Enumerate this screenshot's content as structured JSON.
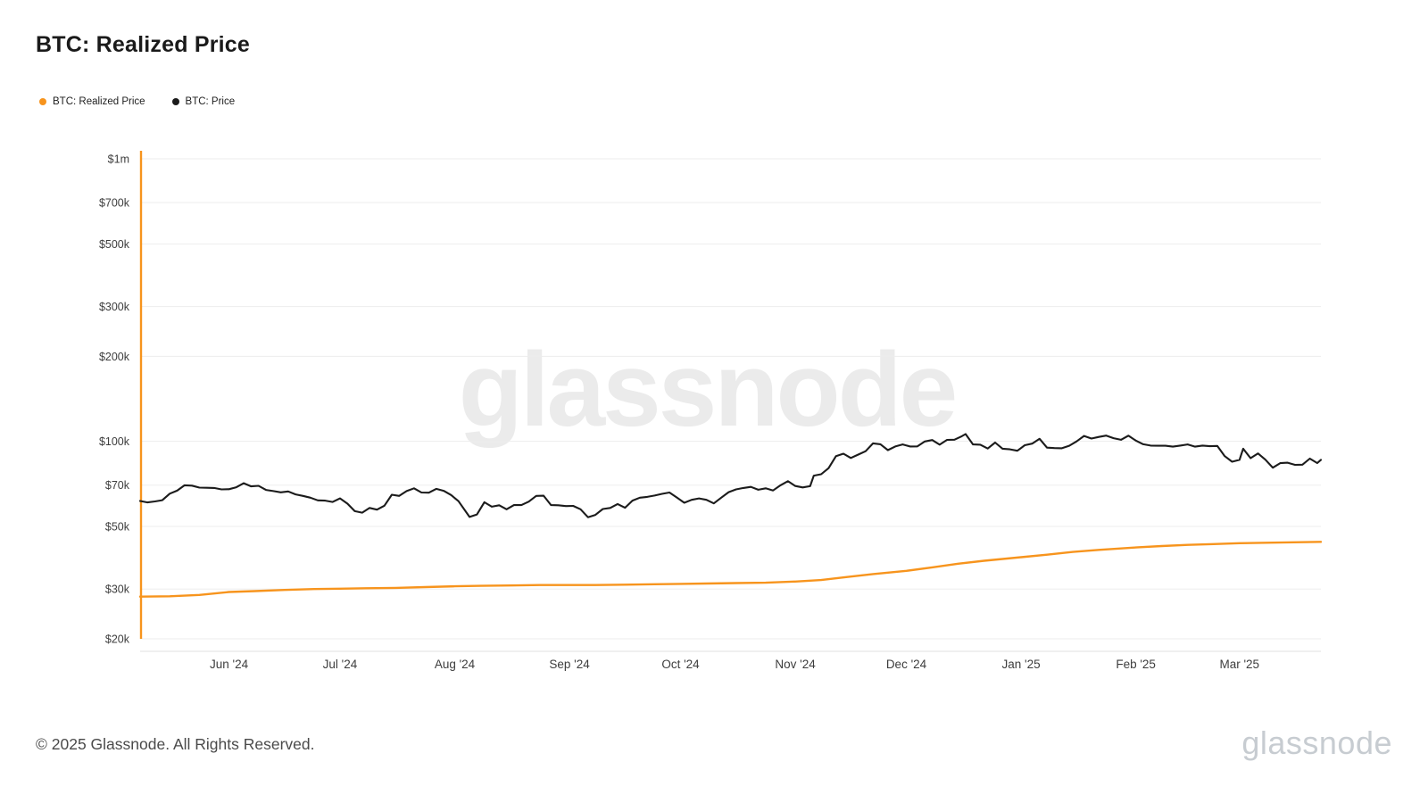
{
  "page": {
    "title": "BTC: Realized Price",
    "watermark": "glassnode",
    "footer_copyright": "© 2025 Glassnode. All Rights Reserved.",
    "brand_logo": "glassnode"
  },
  "legend": [
    {
      "label": "BTC: Realized Price",
      "color": "#f7941d"
    },
    {
      "label": "BTC: Price",
      "color": "#1b1b1b"
    }
  ],
  "chart_data": {
    "type": "line",
    "title": "BTC: Realized Price",
    "grid": "horizontal",
    "legend_position": "top-left",
    "watermark": "glassnode",
    "x_axis": {
      "type": "date",
      "range": [
        "2024-05-08",
        "2025-03-23"
      ],
      "ticks": [
        {
          "label": "Jun '24",
          "date": "2024-06-01"
        },
        {
          "label": "Jul '24",
          "date": "2024-07-01"
        },
        {
          "label": "Aug '24",
          "date": "2024-08-01"
        },
        {
          "label": "Sep '24",
          "date": "2024-09-01"
        },
        {
          "label": "Oct '24",
          "date": "2024-10-01"
        },
        {
          "label": "Nov '24",
          "date": "2024-11-01"
        },
        {
          "label": "Dec '24",
          "date": "2024-12-01"
        },
        {
          "label": "Jan '25",
          "date": "2025-01-01"
        },
        {
          "label": "Feb '25",
          "date": "2025-02-01"
        },
        {
          "label": "Mar '25",
          "date": "2025-03-01"
        }
      ]
    },
    "y_axis": {
      "scale": "log",
      "unit": "USD",
      "range": [
        20000,
        1000000
      ],
      "ticks": [
        {
          "label": "$1m",
          "value": 1000000
        },
        {
          "label": "$700k",
          "value": 700000
        },
        {
          "label": "$500k",
          "value": 500000
        },
        {
          "label": "$300k",
          "value": 300000
        },
        {
          "label": "$200k",
          "value": 200000
        },
        {
          "label": "$100k",
          "value": 100000
        },
        {
          "label": "$70k",
          "value": 70000
        },
        {
          "label": "$50k",
          "value": 50000
        },
        {
          "label": "$30k",
          "value": 30000
        },
        {
          "label": "$20k",
          "value": 20000
        }
      ]
    },
    "left_edge_marker": {
      "color": "#f7941d"
    },
    "series": [
      {
        "name": "BTC: Realized Price",
        "color": "#f7941d",
        "width": 2.4,
        "points": [
          [
            "2024-05-08",
            28200
          ],
          [
            "2024-05-16",
            28300
          ],
          [
            "2024-05-24",
            28600
          ],
          [
            "2024-06-01",
            29300
          ],
          [
            "2024-06-08",
            29500
          ],
          [
            "2024-06-16",
            29800
          ],
          [
            "2024-06-24",
            30000
          ],
          [
            "2024-07-01",
            30100
          ],
          [
            "2024-07-08",
            30200
          ],
          [
            "2024-07-16",
            30300
          ],
          [
            "2024-07-24",
            30500
          ],
          [
            "2024-08-01",
            30700
          ],
          [
            "2024-08-08",
            30800
          ],
          [
            "2024-08-16",
            30900
          ],
          [
            "2024-08-24",
            31000
          ],
          [
            "2024-09-01",
            31000
          ],
          [
            "2024-09-08",
            31000
          ],
          [
            "2024-09-16",
            31100
          ],
          [
            "2024-09-24",
            31200
          ],
          [
            "2024-10-01",
            31300
          ],
          [
            "2024-10-08",
            31400
          ],
          [
            "2024-10-16",
            31500
          ],
          [
            "2024-10-24",
            31600
          ],
          [
            "2024-11-01",
            31900
          ],
          [
            "2024-11-08",
            32300
          ],
          [
            "2024-11-15",
            33100
          ],
          [
            "2024-11-22",
            33900
          ],
          [
            "2024-12-01",
            34800
          ],
          [
            "2024-12-08",
            35800
          ],
          [
            "2024-12-15",
            36900
          ],
          [
            "2024-12-22",
            37800
          ],
          [
            "2025-01-01",
            38900
          ],
          [
            "2025-01-08",
            39700
          ],
          [
            "2025-01-15",
            40600
          ],
          [
            "2025-01-22",
            41300
          ],
          [
            "2025-02-01",
            42100
          ],
          [
            "2025-02-08",
            42600
          ],
          [
            "2025-02-15",
            43000
          ],
          [
            "2025-02-22",
            43300
          ],
          [
            "2025-03-01",
            43600
          ],
          [
            "2025-03-10",
            43800
          ],
          [
            "2025-03-23",
            44100
          ]
        ]
      },
      {
        "name": "BTC: Price",
        "color": "#1b1b1b",
        "width": 2.1,
        "points": [
          [
            "2024-05-08",
            61500
          ],
          [
            "2024-05-10",
            60800
          ],
          [
            "2024-05-12",
            61300
          ],
          [
            "2024-05-14",
            61900
          ],
          [
            "2024-05-16",
            65300
          ],
          [
            "2024-05-18",
            66900
          ],
          [
            "2024-05-20",
            69900
          ],
          [
            "2024-05-22",
            69700
          ],
          [
            "2024-05-24",
            68600
          ],
          [
            "2024-05-26",
            68500
          ],
          [
            "2024-05-28",
            68400
          ],
          [
            "2024-05-30",
            67600
          ],
          [
            "2024-06-01",
            67700
          ],
          [
            "2024-06-03",
            68800
          ],
          [
            "2024-06-05",
            71100
          ],
          [
            "2024-06-07",
            69300
          ],
          [
            "2024-06-09",
            69600
          ],
          [
            "2024-06-11",
            67300
          ],
          [
            "2024-06-13",
            66700
          ],
          [
            "2024-06-15",
            66000
          ],
          [
            "2024-06-17",
            66500
          ],
          [
            "2024-06-19",
            64900
          ],
          [
            "2024-06-21",
            64100
          ],
          [
            "2024-06-23",
            63200
          ],
          [
            "2024-06-25",
            61800
          ],
          [
            "2024-06-27",
            61700
          ],
          [
            "2024-06-29",
            61000
          ],
          [
            "2024-07-01",
            62800
          ],
          [
            "2024-07-03",
            60200
          ],
          [
            "2024-07-05",
            56600
          ],
          [
            "2024-07-07",
            55900
          ],
          [
            "2024-07-09",
            58100
          ],
          [
            "2024-07-11",
            57300
          ],
          [
            "2024-07-13",
            59200
          ],
          [
            "2024-07-15",
            64700
          ],
          [
            "2024-07-17",
            64100
          ],
          [
            "2024-07-19",
            66700
          ],
          [
            "2024-07-21",
            68200
          ],
          [
            "2024-07-23",
            65900
          ],
          [
            "2024-07-25",
            65800
          ],
          [
            "2024-07-27",
            67900
          ],
          [
            "2024-07-29",
            66800
          ],
          [
            "2024-07-31",
            64600
          ],
          [
            "2024-08-02",
            61400
          ],
          [
            "2024-08-05",
            54000
          ],
          [
            "2024-08-07",
            55100
          ],
          [
            "2024-08-09",
            60900
          ],
          [
            "2024-08-11",
            58700
          ],
          [
            "2024-08-13",
            59400
          ],
          [
            "2024-08-15",
            57500
          ],
          [
            "2024-08-17",
            59500
          ],
          [
            "2024-08-19",
            59500
          ],
          [
            "2024-08-21",
            61200
          ],
          [
            "2024-08-23",
            64100
          ],
          [
            "2024-08-25",
            64200
          ],
          [
            "2024-08-27",
            59500
          ],
          [
            "2024-08-29",
            59400
          ],
          [
            "2024-08-31",
            59000
          ],
          [
            "2024-09-02",
            59100
          ],
          [
            "2024-09-04",
            57500
          ],
          [
            "2024-09-06",
            53900
          ],
          [
            "2024-09-08",
            54900
          ],
          [
            "2024-09-10",
            57600
          ],
          [
            "2024-09-12",
            58100
          ],
          [
            "2024-09-14",
            60000
          ],
          [
            "2024-09-16",
            58200
          ],
          [
            "2024-09-18",
            61700
          ],
          [
            "2024-09-20",
            63200
          ],
          [
            "2024-09-22",
            63600
          ],
          [
            "2024-09-24",
            64300
          ],
          [
            "2024-09-26",
            65200
          ],
          [
            "2024-09-28",
            65900
          ],
          [
            "2024-09-30",
            63300
          ],
          [
            "2024-10-02",
            60600
          ],
          [
            "2024-10-04",
            62100
          ],
          [
            "2024-10-06",
            62800
          ],
          [
            "2024-10-08",
            62100
          ],
          [
            "2024-10-10",
            60300
          ],
          [
            "2024-10-12",
            63200
          ],
          [
            "2024-10-14",
            66100
          ],
          [
            "2024-10-16",
            67600
          ],
          [
            "2024-10-18",
            68400
          ],
          [
            "2024-10-20",
            69000
          ],
          [
            "2024-10-22",
            67400
          ],
          [
            "2024-10-24",
            68200
          ],
          [
            "2024-10-26",
            67000
          ],
          [
            "2024-10-28",
            69900
          ],
          [
            "2024-10-30",
            72300
          ],
          [
            "2024-11-01",
            69500
          ],
          [
            "2024-11-03",
            68700
          ],
          [
            "2024-11-05",
            69400
          ],
          [
            "2024-11-06",
            75600
          ],
          [
            "2024-11-08",
            76500
          ],
          [
            "2024-11-10",
            80400
          ],
          [
            "2024-11-12",
            88700
          ],
          [
            "2024-11-14",
            90400
          ],
          [
            "2024-11-16",
            87300
          ],
          [
            "2024-11-18",
            89800
          ],
          [
            "2024-11-20",
            92300
          ],
          [
            "2024-11-22",
            98400
          ],
          [
            "2024-11-24",
            97700
          ],
          [
            "2024-11-26",
            93100
          ],
          [
            "2024-11-28",
            95900
          ],
          [
            "2024-11-30",
            97500
          ],
          [
            "2024-12-02",
            95900
          ],
          [
            "2024-12-04",
            96000
          ],
          [
            "2024-12-06",
            99900
          ],
          [
            "2024-12-08",
            101100
          ],
          [
            "2024-12-10",
            97300
          ],
          [
            "2024-12-12",
            101200
          ],
          [
            "2024-12-14",
            101400
          ],
          [
            "2024-12-16",
            104300
          ],
          [
            "2024-12-17",
            106100
          ],
          [
            "2024-12-19",
            97500
          ],
          [
            "2024-12-21",
            97300
          ],
          [
            "2024-12-23",
            94300
          ],
          [
            "2024-12-25",
            99000
          ],
          [
            "2024-12-27",
            94200
          ],
          [
            "2024-12-29",
            93700
          ],
          [
            "2024-12-31",
            92600
          ],
          [
            "2025-01-02",
            96900
          ],
          [
            "2025-01-04",
            98200
          ],
          [
            "2025-01-06",
            102100
          ],
          [
            "2025-01-08",
            95000
          ],
          [
            "2025-01-10",
            94700
          ],
          [
            "2025-01-12",
            94500
          ],
          [
            "2025-01-14",
            96500
          ],
          [
            "2025-01-16",
            100000
          ],
          [
            "2025-01-18",
            104500
          ],
          [
            "2025-01-20",
            102300
          ],
          [
            "2025-01-22",
            103700
          ],
          [
            "2025-01-24",
            104800
          ],
          [
            "2025-01-26",
            102600
          ],
          [
            "2025-01-28",
            101300
          ],
          [
            "2025-01-30",
            104700
          ],
          [
            "2025-02-01",
            100600
          ],
          [
            "2025-02-03",
            97700
          ],
          [
            "2025-02-05",
            96600
          ],
          [
            "2025-02-07",
            96500
          ],
          [
            "2025-02-09",
            96500
          ],
          [
            "2025-02-11",
            95800
          ],
          [
            "2025-02-13",
            96600
          ],
          [
            "2025-02-15",
            97500
          ],
          [
            "2025-02-17",
            95800
          ],
          [
            "2025-02-19",
            96600
          ],
          [
            "2025-02-21",
            96100
          ],
          [
            "2025-02-23",
            96300
          ],
          [
            "2025-02-25",
            88700
          ],
          [
            "2025-02-27",
            84700
          ],
          [
            "2025-03-01",
            86000
          ],
          [
            "2025-03-02",
            94200
          ],
          [
            "2025-03-04",
            87200
          ],
          [
            "2025-03-06",
            90600
          ],
          [
            "2025-03-08",
            86100
          ],
          [
            "2025-03-10",
            80700
          ],
          [
            "2025-03-12",
            83700
          ],
          [
            "2025-03-14",
            84000
          ],
          [
            "2025-03-16",
            82600
          ],
          [
            "2025-03-18",
            82700
          ],
          [
            "2025-03-20",
            86900
          ],
          [
            "2025-03-22",
            83800
          ],
          [
            "2025-03-23",
            86000
          ]
        ]
      }
    ]
  }
}
